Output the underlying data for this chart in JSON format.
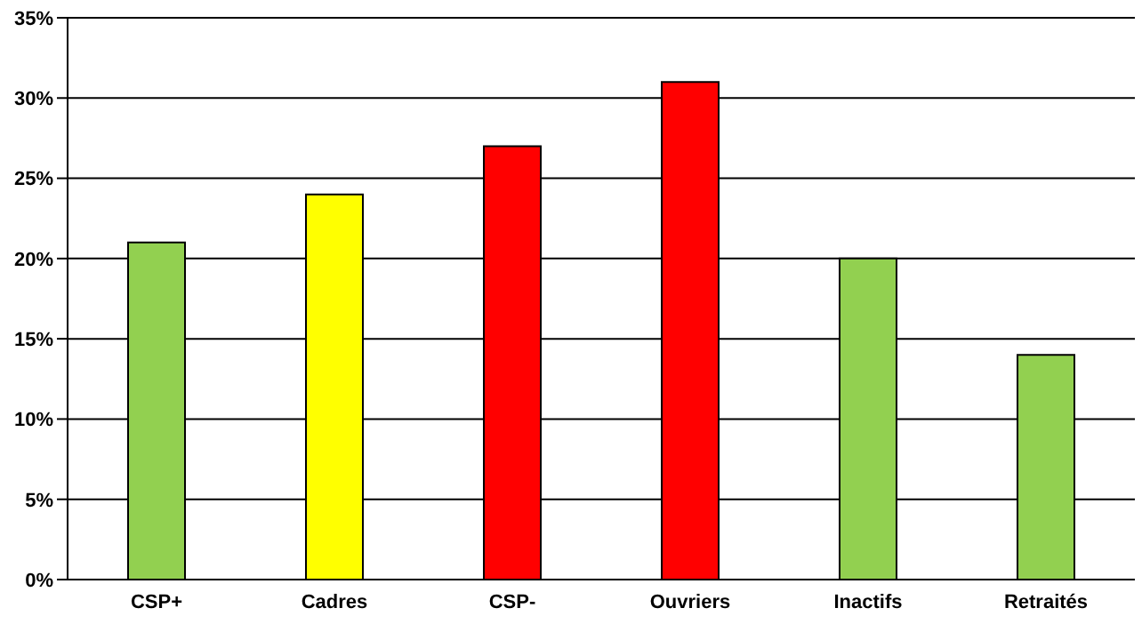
{
  "chart_data": {
    "type": "bar",
    "categories": [
      "CSP+",
      "Cadres",
      "CSP-",
      "Ouvriers",
      "Inactifs",
      "Retraités"
    ],
    "values": [
      21,
      24,
      27,
      31,
      20,
      14
    ],
    "colors": [
      "#92d050",
      "#ffff00",
      "#ff0000",
      "#ff0000",
      "#92d050",
      "#92d050"
    ],
    "ylim": [
      0,
      35
    ],
    "yticks": [
      {
        "value": 0,
        "label": "0%"
      },
      {
        "value": 5,
        "label": "5%"
      },
      {
        "value": 10,
        "label": "10%"
      },
      {
        "value": 15,
        "label": "15%"
      },
      {
        "value": 20,
        "label": "20%"
      },
      {
        "value": 25,
        "label": "25%"
      },
      {
        "value": 30,
        "label": "30%"
      },
      {
        "value": 35,
        "label": "35%"
      }
    ],
    "grid": "y",
    "legend": false
  }
}
